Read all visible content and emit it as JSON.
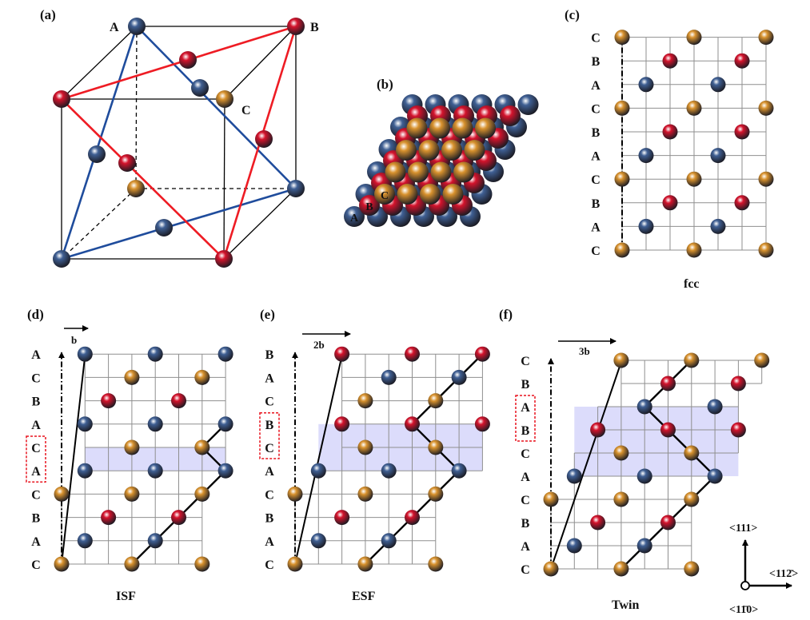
{
  "colors": {
    "A": "#3f5f93",
    "B": "#d4132c",
    "C": "#d8922e",
    "blue_line": "#1f4c9c",
    "red_line": "#ee1c24",
    "shade": "#dcdcfb",
    "dash_box": "#e8141e"
  },
  "panel_a": {
    "label": "(a)",
    "corner_labels": {
      "A": "A",
      "B": "B",
      "C": "C"
    }
  },
  "panel_b": {
    "label": "(b)",
    "layer_labels": [
      "A",
      "B",
      "C"
    ]
  },
  "panel_c": {
    "label": "(c)",
    "caption": "fcc",
    "layers": [
      "C",
      "A",
      "B",
      "C",
      "A",
      "B",
      "C",
      "A",
      "B",
      "C"
    ]
  },
  "panel_d": {
    "label": "(d)",
    "caption": "ISF",
    "shift_label": "b",
    "layers": [
      "C",
      "A",
      "B",
      "C",
      "A",
      "C",
      "A",
      "B",
      "C",
      "A"
    ],
    "boxed_layers": [
      4,
      5
    ]
  },
  "panel_e": {
    "label": "(e)",
    "caption": "ESF",
    "shift_label": "2b",
    "layers": [
      "C",
      "A",
      "B",
      "C",
      "A",
      "C",
      "B",
      "C",
      "A",
      "B"
    ],
    "boxed_layers": [
      5,
      6
    ]
  },
  "panel_f": {
    "label": "(f)",
    "caption": "Twin",
    "shift_label": "3b",
    "layers": [
      "C",
      "A",
      "B",
      "C",
      "A",
      "C",
      "B",
      "A",
      "B",
      "C"
    ],
    "boxed_layers": [
      6,
      7
    ]
  },
  "axes": {
    "up": "<111>",
    "right": "<112̄>",
    "normal": "<11̄0>"
  }
}
